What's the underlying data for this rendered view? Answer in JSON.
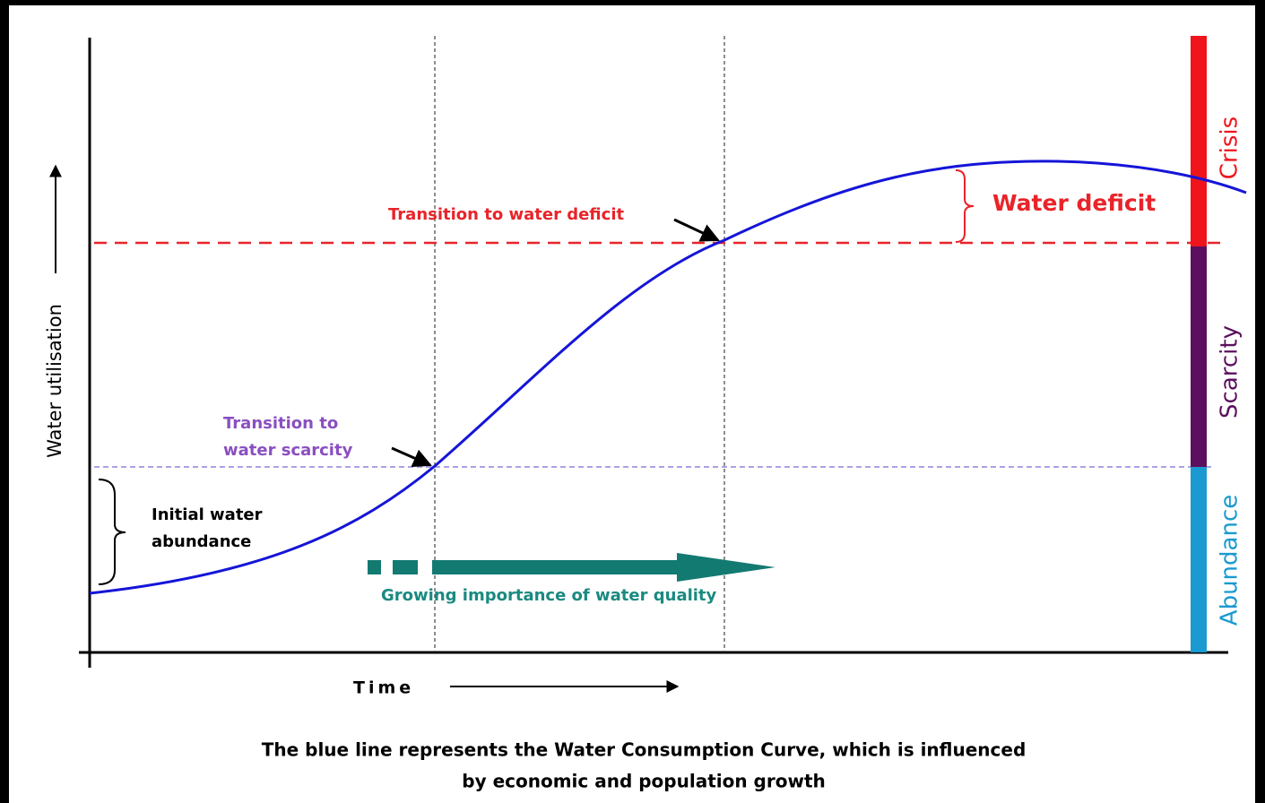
{
  "diagram": {
    "y_axis_label": "Water utilisation",
    "x_axis_label": "Time",
    "annotations": {
      "transition_deficit": "Transition to water deficit",
      "transition_scarcity": [
        "Transition to",
        "water scarcity"
      ],
      "initial_abundance": [
        "Initial water",
        "abundance"
      ],
      "water_deficit": "Water deficit",
      "water_quality": "Growing importance of water quality"
    },
    "bands": {
      "crisis": "Crisis",
      "scarcity": "Scarcity",
      "abundance": "Abundance"
    },
    "caption": [
      "The blue line represents the Water Consumption Curve, which is influenced",
      "by economic and population growth"
    ]
  }
}
